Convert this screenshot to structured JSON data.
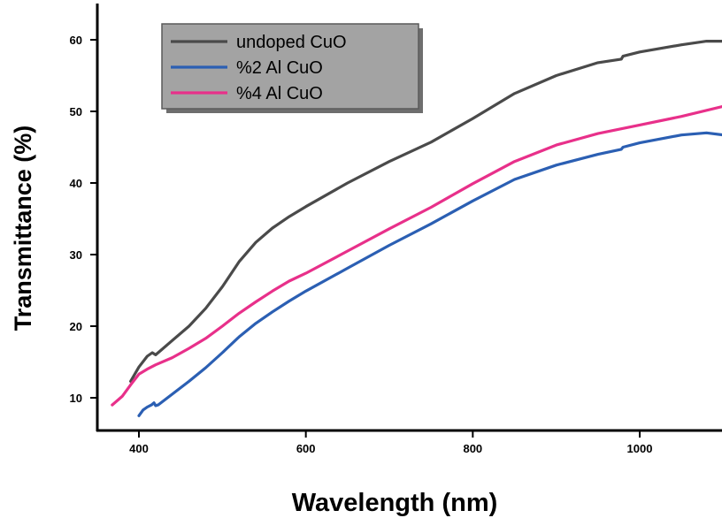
{
  "chart_data": {
    "type": "line",
    "title": "",
    "xlabel": "Wavelength (nm)",
    "ylabel": "Transmittance (%)",
    "xlim": [
      345,
      1100
    ],
    "ylim": [
      5.5,
      62
    ],
    "x_ticks": [
      400,
      600,
      800,
      1000
    ],
    "y_ticks": [
      10,
      20,
      30,
      40,
      50,
      60
    ],
    "grid": false,
    "legend_position": "top-left",
    "series": [
      {
        "name": "undoped CuO",
        "color": "#4a4a4a",
        "x": [
          390,
          400,
          410,
          416,
          420,
          425,
          440,
          460,
          480,
          500,
          520,
          540,
          560,
          580,
          600,
          650,
          700,
          750,
          800,
          850,
          900,
          950,
          978,
          980,
          1000,
          1050,
          1080,
          1100
        ],
        "y": [
          12.3,
          14.3,
          15.8,
          16.3,
          16.0,
          16.5,
          18.0,
          20.0,
          22.5,
          25.5,
          29.0,
          31.7,
          33.7,
          35.3,
          36.7,
          40.0,
          43.0,
          45.7,
          49.0,
          52.5,
          55.0,
          56.8,
          57.3,
          57.7,
          58.3,
          59.3,
          59.8,
          59.8
        ]
      },
      {
        "name": "%2 Al CuO",
        "color": "#2b5fb3",
        "x": [
          400,
          405,
          410,
          415,
          418,
          420,
          423,
          440,
          460,
          480,
          500,
          520,
          540,
          560,
          580,
          600,
          650,
          700,
          750,
          800,
          850,
          900,
          950,
          978,
          980,
          1000,
          1050,
          1080,
          1100
        ],
        "y": [
          7.5,
          8.3,
          8.7,
          9.0,
          9.3,
          8.9,
          9.0,
          10.5,
          12.3,
          14.2,
          16.3,
          18.5,
          20.4,
          22.0,
          23.5,
          24.9,
          28.1,
          31.3,
          34.3,
          37.5,
          40.5,
          42.5,
          44.0,
          44.7,
          45.0,
          45.6,
          46.7,
          47.0,
          46.7
        ]
      },
      {
        "name": "%4 Al CuO",
        "color": "#e8308a",
        "x": [
          368,
          380,
          390,
          400,
          410,
          420,
          440,
          460,
          480,
          500,
          520,
          540,
          560,
          580,
          600,
          650,
          700,
          750,
          800,
          850,
          900,
          950,
          1000,
          1050,
          1100
        ],
        "y": [
          9.0,
          10.2,
          11.8,
          13.3,
          14.0,
          14.6,
          15.6,
          16.9,
          18.3,
          20.0,
          21.8,
          23.4,
          24.9,
          26.3,
          27.4,
          30.5,
          33.6,
          36.6,
          39.9,
          43.0,
          45.3,
          46.9,
          48.1,
          49.3,
          50.7
        ]
      }
    ]
  }
}
